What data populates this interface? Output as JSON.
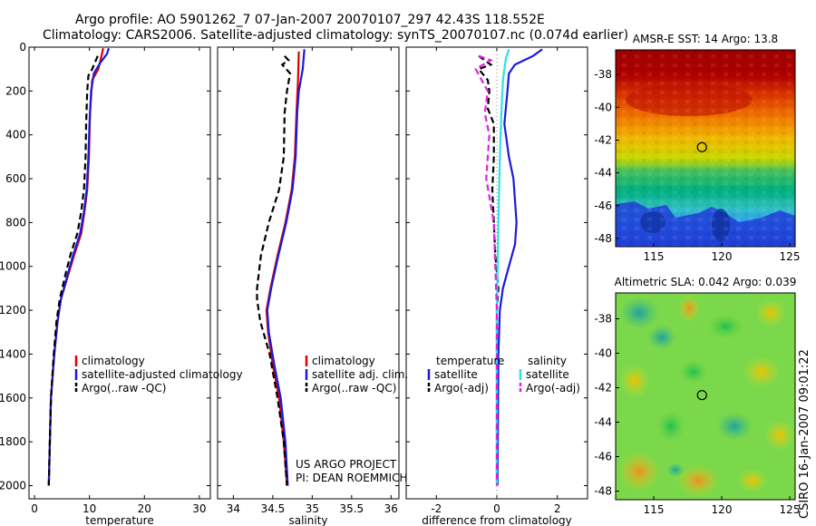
{
  "header": {
    "line1": "Argo profile: AO 5901262_7 07-Jan-2007 20070107_297 42.43S 118.552E",
    "line2": "Climatology: CARS2006. Satellite-adjusted climatology: synTS_20070107.nc (0.074d earlier)"
  },
  "side_label": "CSIRO 16-Jan-2007 09:01:22",
  "colors": {
    "climatology": "#e00000",
    "satellite": "#1a1adc",
    "argo": "#000000",
    "sal_satellite": "#30e0e0",
    "sal_argo": "#e020e0"
  },
  "chart_data": [
    {
      "type": "line",
      "xlabel": "temperature",
      "xlim": [
        -1,
        32
      ],
      "ylim": [
        2060,
        0
      ],
      "x_ticks": [
        0,
        10,
        20,
        30
      ],
      "y_ticks": [
        0,
        200,
        400,
        600,
        800,
        1000,
        1200,
        1400,
        1600,
        1800,
        2000
      ],
      "legend": {
        "placement": "lower-right",
        "entries": [
          "climatology",
          "satellite-adjusted climatology",
          "Argo(..raw -QC)"
        ]
      },
      "series": [
        {
          "name": "climatology",
          "color_key": "climatology",
          "dash": "",
          "points": [
            [
              12.5,
              5
            ],
            [
              12.2,
              40
            ],
            [
              11.6,
              100
            ],
            [
              10.5,
              150
            ],
            [
              10.1,
              300
            ],
            [
              9.9,
              500
            ],
            [
              9.6,
              650
            ],
            [
              9.1,
              750
            ],
            [
              8.5,
              850
            ],
            [
              7.2,
              950
            ],
            [
              6.0,
              1050
            ],
            [
              4.8,
              1150
            ],
            [
              4.2,
              1250
            ],
            [
              3.6,
              1400
            ],
            [
              3.0,
              1600
            ],
            [
              2.8,
              1800
            ],
            [
              2.6,
              2000
            ]
          ]
        },
        {
          "name": "satellite-adjusted climatology",
          "color_key": "satellite",
          "dash": "",
          "points": [
            [
              13.5,
              5
            ],
            [
              13.2,
              30
            ],
            [
              12.0,
              70
            ],
            [
              10.8,
              120
            ],
            [
              10.3,
              200
            ],
            [
              10.0,
              350
            ],
            [
              9.8,
              500
            ],
            [
              9.5,
              650
            ],
            [
              9.0,
              750
            ],
            [
              8.3,
              850
            ],
            [
              7.0,
              950
            ],
            [
              5.9,
              1050
            ],
            [
              4.8,
              1150
            ],
            [
              4.2,
              1250
            ],
            [
              3.6,
              1400
            ],
            [
              3.0,
              1600
            ],
            [
              2.8,
              1800
            ],
            [
              2.6,
              2000
            ]
          ]
        },
        {
          "name": "Argo(..raw -QC)",
          "color_key": "argo",
          "dash": "7,4",
          "points": [
            [
              11.5,
              40
            ],
            [
              11.0,
              70
            ],
            [
              10.5,
              100
            ],
            [
              9.8,
              130
            ],
            [
              9.6,
              200
            ],
            [
              9.4,
              350
            ],
            [
              9.3,
              500
            ],
            [
              9.0,
              650
            ],
            [
              8.5,
              750
            ],
            [
              7.8,
              850
            ],
            [
              6.5,
              950
            ],
            [
              5.5,
              1050
            ],
            [
              4.6,
              1150
            ],
            [
              4.0,
              1250
            ],
            [
              3.5,
              1400
            ],
            [
              3.0,
              1600
            ],
            [
              2.8,
              1800
            ],
            [
              2.6,
              2000
            ]
          ]
        }
      ]
    },
    {
      "type": "line",
      "xlabel": "salinity",
      "xlim": [
        33.8,
        36.1
      ],
      "ylim": [
        2060,
        0
      ],
      "x_ticks": [
        34,
        34.5,
        35,
        35.5,
        36
      ],
      "legend": {
        "placement": "lower-right",
        "entries": [
          "climatology",
          "satellite adj. clim.",
          "Argo(..raw -QC)"
        ]
      },
      "annotation": [
        "US ARGO PROJECT",
        "PI: DEAN ROEMMICH"
      ],
      "series": [
        {
          "name": "climatology",
          "color_key": "climatology",
          "dash": "",
          "points": [
            [
              34.83,
              20
            ],
            [
              34.82,
              150
            ],
            [
              34.8,
              300
            ],
            [
              34.78,
              500
            ],
            [
              34.74,
              650
            ],
            [
              34.66,
              800
            ],
            [
              34.56,
              950
            ],
            [
              34.47,
              1100
            ],
            [
              34.42,
              1200
            ],
            [
              34.44,
              1300
            ],
            [
              34.5,
              1450
            ],
            [
              34.58,
              1600
            ],
            [
              34.64,
              1800
            ],
            [
              34.68,
              2000
            ]
          ]
        },
        {
          "name": "satellite adj. clim.",
          "color_key": "satellite",
          "dash": "",
          "points": [
            [
              34.9,
              10
            ],
            [
              34.88,
              100
            ],
            [
              34.83,
              200
            ],
            [
              34.81,
              300
            ],
            [
              34.79,
              500
            ],
            [
              34.75,
              650
            ],
            [
              34.67,
              800
            ],
            [
              34.57,
              950
            ],
            [
              34.48,
              1100
            ],
            [
              34.43,
              1200
            ],
            [
              34.45,
              1300
            ],
            [
              34.52,
              1450
            ],
            [
              34.6,
              1600
            ],
            [
              34.66,
              1800
            ],
            [
              34.69,
              2000
            ]
          ]
        },
        {
          "name": "Argo(..raw -QC)",
          "color_key": "argo",
          "dash": "7,4",
          "points": [
            [
              34.65,
              40
            ],
            [
              34.7,
              60
            ],
            [
              34.62,
              80
            ],
            [
              34.72,
              120
            ],
            [
              34.68,
              200
            ],
            [
              34.65,
              300
            ],
            [
              34.64,
              500
            ],
            [
              34.58,
              650
            ],
            [
              34.45,
              800
            ],
            [
              34.35,
              950
            ],
            [
              34.3,
              1100
            ],
            [
              34.3,
              1150
            ],
            [
              34.34,
              1250
            ],
            [
              34.46,
              1400
            ],
            [
              34.56,
              1600
            ],
            [
              34.64,
              1800
            ],
            [
              34.68,
              2000
            ]
          ]
        }
      ]
    },
    {
      "type": "line",
      "xlabel": "difference from climatology",
      "xlim": [
        -3,
        3
      ],
      "ylim": [
        2060,
        0
      ],
      "x_ticks": [
        -2,
        0,
        2
      ],
      "legend": {
        "placement": "lower-center",
        "headers": [
          "temperature",
          "salinity"
        ],
        "entries": [
          "satellite",
          "Argo(-adj)",
          "satellite",
          "Argo(-adj)"
        ]
      },
      "series": [
        {
          "name": "satellite",
          "group": "temperature",
          "color_key": "satellite",
          "dash": "",
          "points": [
            [
              1.5,
              10
            ],
            [
              1.2,
              40
            ],
            [
              0.6,
              80
            ],
            [
              0.4,
              120
            ],
            [
              0.35,
              200
            ],
            [
              0.25,
              350
            ],
            [
              0.4,
              500
            ],
            [
              0.55,
              600
            ],
            [
              0.65,
              800
            ],
            [
              0.6,
              900
            ],
            [
              0.4,
              1000
            ],
            [
              0.2,
              1100
            ],
            [
              0.1,
              1200
            ],
            [
              0.05,
              1400
            ],
            [
              0.02,
              2000
            ]
          ]
        },
        {
          "name": "Argo(-adj)",
          "group": "temperature",
          "color_key": "argo",
          "dash": "7,4",
          "points": [
            [
              -0.6,
              40
            ],
            [
              -0.4,
              60
            ],
            [
              -0.2,
              80
            ],
            [
              -0.6,
              100
            ],
            [
              -0.3,
              150
            ],
            [
              -0.25,
              200
            ],
            [
              -0.3,
              280
            ],
            [
              -0.1,
              350
            ],
            [
              -0.1,
              500
            ],
            [
              -0.15,
              650
            ],
            [
              -0.1,
              800
            ],
            [
              -0.05,
              950
            ],
            [
              0.05,
              1100
            ],
            [
              0.0,
              1200
            ],
            [
              0.0,
              1400
            ],
            [
              0.0,
              2000
            ]
          ]
        },
        {
          "name": "satellite",
          "group": "salinity",
          "color_key": "sal_satellite",
          "dash": "",
          "points": [
            [
              0.4,
              10
            ],
            [
              0.3,
              50
            ],
            [
              0.2,
              150
            ],
            [
              0.15,
              300
            ],
            [
              0.1,
              500
            ],
            [
              0.05,
              800
            ],
            [
              0.0,
              1200
            ],
            [
              0.0,
              2000
            ]
          ]
        },
        {
          "name": "Argo(-adj)",
          "group": "salinity",
          "color_key": "sal_argo",
          "dash": "7,4",
          "points": [
            [
              -0.6,
              40
            ],
            [
              -0.2,
              60
            ],
            [
              -0.7,
              100
            ],
            [
              -0.5,
              150
            ],
            [
              -0.3,
              200
            ],
            [
              -0.4,
              300
            ],
            [
              -0.25,
              400
            ],
            [
              -0.35,
              600
            ],
            [
              -0.1,
              800
            ],
            [
              -0.05,
              1000
            ],
            [
              0.0,
              1200
            ],
            [
              0.0,
              2000
            ]
          ]
        }
      ]
    },
    {
      "type": "heatmap",
      "title": "AMSR-E SST: 14 Argo: 13.8",
      "xlim": [
        112.2,
        125.4
      ],
      "ylim": [
        -48.5,
        -36.5
      ],
      "x_ticks": [
        115,
        120,
        125
      ],
      "y_ticks": [
        -38,
        -40,
        -42,
        -44,
        -46,
        -48
      ],
      "marker": {
        "x": 118.55,
        "y": -42.43
      }
    },
    {
      "type": "heatmap",
      "title": "Altimetric SLA: 0.042 Argo: 0.039",
      "xlim": [
        112.2,
        125.4
      ],
      "ylim": [
        -48.5,
        -36.5
      ],
      "x_ticks": [
        115,
        120,
        125
      ],
      "y_ticks": [
        -38,
        -40,
        -42,
        -44,
        -46,
        -48
      ],
      "marker": {
        "x": 118.55,
        "y": -42.43
      }
    }
  ]
}
